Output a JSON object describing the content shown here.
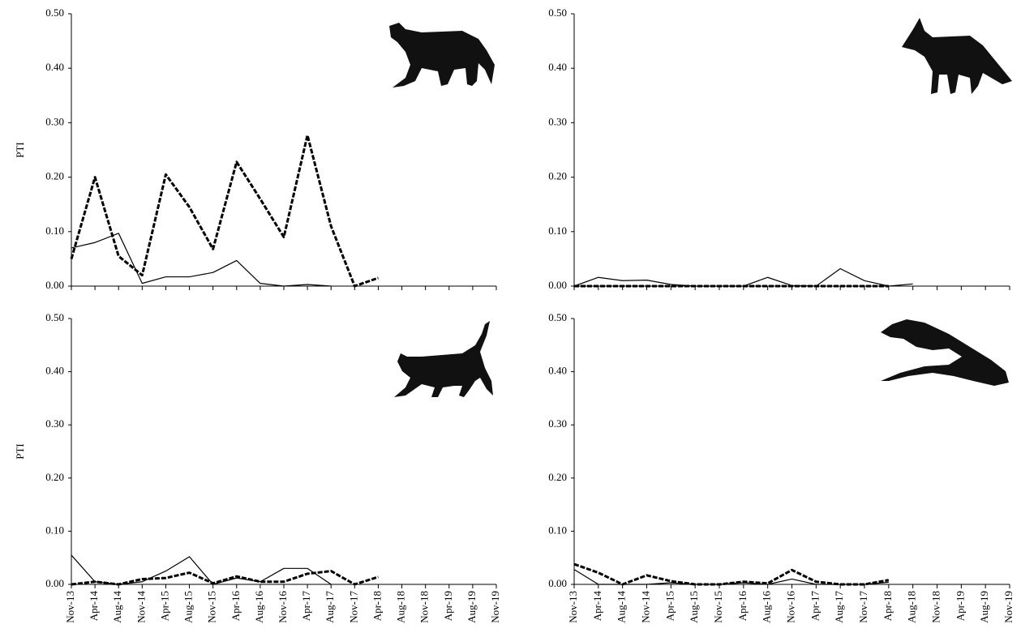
{
  "chart_data": [
    {
      "type": "line",
      "y_label": "PTI",
      "categories": [
        null,
        null,
        null,
        null,
        null,
        null,
        null,
        null,
        null,
        null,
        null,
        null,
        null,
        null,
        null,
        null,
        null,
        null,
        null
      ],
      "ylim": [
        0,
        0.5
      ],
      "yticks": [
        {
          "value": 0,
          "label": "0.00"
        },
        {
          "value": 0.1,
          "label": "0.10"
        },
        {
          "value": 0.2,
          "label": "0.20"
        },
        {
          "value": 0.3,
          "label": "0.30"
        },
        {
          "value": 0.4,
          "label": "0.40"
        },
        {
          "value": 0.5,
          "label": "0.50"
        }
      ],
      "series": [
        {
          "color": "#000000",
          "dashed": false,
          "values": [
            0.07,
            0.08,
            0.097,
            0.005,
            0.017,
            0.017,
            0.025,
            0.047,
            0.005,
            0.0,
            0.003,
            0.0,
            null,
            null,
            null,
            null,
            null,
            null,
            null
          ]
        },
        {
          "color": "#000000",
          "dashed": true,
          "values": [
            0.05,
            0.2,
            0.055,
            0.02,
            0.205,
            0.145,
            0.068,
            0.228,
            0.16,
            0.09,
            0.277,
            0.11,
            0.0,
            0.015,
            null,
            null,
            null,
            null,
            null
          ]
        }
      ]
    },
    {
      "type": "line",
      "categories": [
        null,
        null,
        null,
        null,
        null,
        null,
        null,
        null,
        null,
        null,
        null,
        null,
        null,
        null,
        null,
        null,
        null,
        null,
        null
      ],
      "ylim": [
        0,
        0.5
      ],
      "yticks": [
        {
          "value": 0,
          "label": "0.00"
        },
        {
          "value": 0.1,
          "label": "0.10"
        },
        {
          "value": 0.2,
          "label": "0.20"
        },
        {
          "value": 0.3,
          "label": "0.30"
        },
        {
          "value": 0.4,
          "label": "0.40"
        },
        {
          "value": 0.5,
          "label": "0.50"
        }
      ],
      "series": [
        {
          "color": "#000000",
          "dashed": false,
          "values": [
            0.0,
            0.016,
            0.01,
            0.011,
            0.003,
            0.0,
            0.0,
            0.0,
            0.016,
            0.001,
            0.0,
            0.032,
            0.01,
            0.0,
            0.004,
            null,
            null,
            null,
            null
          ]
        },
        {
          "color": "#000000",
          "dashed": true,
          "values": [
            0.0,
            0.0,
            0.0,
            0.0,
            0.0,
            0.0,
            0.0,
            0.0,
            0.0,
            0.0,
            0.0,
            0.0,
            0.0,
            0.0,
            null,
            null,
            null,
            null,
            null
          ]
        }
      ]
    },
    {
      "type": "line",
      "y_label": "PTI",
      "categories": [
        "Nov-13",
        "Apr-14",
        "Aug-14",
        "Nov-14",
        "Apr-15",
        "Aug-15",
        "Nov-15",
        "Apr-16",
        "Aug-16",
        "Nov-16",
        "Apr-17",
        "Aug-17",
        "Nov-17",
        "Apr-18",
        "Aug-18",
        "Nov-18",
        "Apr-19",
        "Aug-19",
        "Nov-19"
      ],
      "ylim": [
        0,
        0.5
      ],
      "yticks": [
        {
          "value": 0,
          "label": "0.00"
        },
        {
          "value": 0.1,
          "label": "0.10"
        },
        {
          "value": 0.2,
          "label": "0.20"
        },
        {
          "value": 0.3,
          "label": "0.30"
        },
        {
          "value": 0.4,
          "label": "0.40"
        },
        {
          "value": 0.5,
          "label": "0.50"
        }
      ],
      "series": [
        {
          "color": "#000000",
          "dashed": false,
          "values": [
            0.055,
            0.005,
            0.0,
            0.005,
            0.025,
            0.052,
            0.0,
            0.012,
            0.005,
            0.03,
            0.03,
            0.0,
            null,
            null,
            null,
            null,
            null,
            null,
            null
          ]
        },
        {
          "color": "#000000",
          "dashed": true,
          "values": [
            0.0,
            0.005,
            0.0,
            0.01,
            0.012,
            0.022,
            0.002,
            0.015,
            0.005,
            0.005,
            0.02,
            0.025,
            0.0,
            0.014,
            null,
            null,
            null,
            null,
            null
          ]
        }
      ]
    },
    {
      "type": "line",
      "categories": [
        "Nov-13",
        "Apr-14",
        "Aug-14",
        "Nov-14",
        "Apr-15",
        "Aug-15",
        "Nov-15",
        "Apr-16",
        "Aug-16",
        "Nov-16",
        "Apr-17",
        "Aug-17",
        "Nov-17",
        "Apr-18",
        "Aug-18",
        "Nov-18",
        "Apr-19",
        "Aug-19",
        "Nov-19"
      ],
      "ylim": [
        0,
        0.5
      ],
      "yticks": [
        {
          "value": 0,
          "label": "0.00"
        },
        {
          "value": 0.1,
          "label": "0.10"
        },
        {
          "value": 0.2,
          "label": "0.20"
        },
        {
          "value": 0.3,
          "label": "0.30"
        },
        {
          "value": 0.4,
          "label": "0.40"
        },
        {
          "value": 0.5,
          "label": "0.50"
        }
      ],
      "series": [
        {
          "color": "#000000",
          "dashed": false,
          "values": [
            0.028,
            0.0,
            0.0,
            0.0,
            0.003,
            0.0,
            0.0,
            0.003,
            0.0,
            0.01,
            0.0,
            0.0,
            0.0,
            0.004,
            null,
            null,
            null,
            null,
            null
          ]
        },
        {
          "color": "#000000",
          "dashed": true,
          "values": [
            0.038,
            0.022,
            0.0,
            0.017,
            0.006,
            0.0,
            0.0,
            0.005,
            0.002,
            0.027,
            0.005,
            0.0,
            0.0,
            0.008,
            null,
            null,
            null,
            null,
            null
          ]
        }
      ]
    }
  ]
}
